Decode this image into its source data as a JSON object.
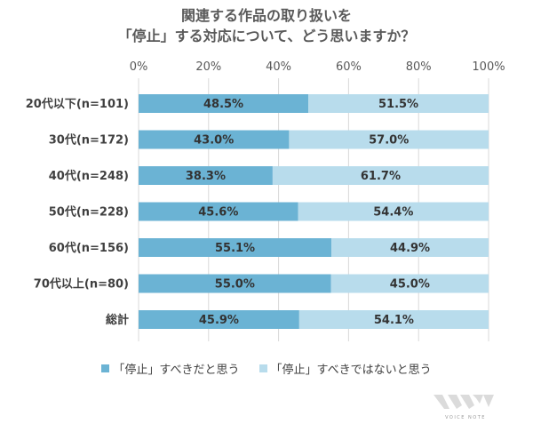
{
  "title_line1": "関連する作品の取り扱いを",
  "title_line2": "「停止」する対応について、どう思いますか？",
  "colors": {
    "series1": "#6bb3d4",
    "series2": "#b8dcec",
    "grid": "#d9d9d9"
  },
  "chart_data": {
    "type": "bar",
    "orientation": "horizontal",
    "stacked": true,
    "title": "関連する作品の取り扱いを「停止」する対応について、どう思いますか？",
    "categories": [
      "20代以下(n=101)",
      "30代(n=172)",
      "40代(n=248)",
      "50代(n=228)",
      "60代(n=156)",
      "70代以上(n=80)",
      "総計"
    ],
    "series": [
      {
        "name": "「停止」すべきだと思う",
        "values": [
          48.5,
          43.0,
          38.3,
          45.6,
          55.1,
          55.0,
          45.9
        ]
      },
      {
        "name": "「停止」すべきではないと思う",
        "values": [
          51.5,
          57.0,
          61.7,
          54.4,
          44.9,
          45.0,
          54.1
        ]
      }
    ],
    "data_labels": [
      [
        "48.5%",
        "43.0%",
        "38.3%",
        "45.6%",
        "55.1%",
        "55.0%",
        "45.9%"
      ],
      [
        "51.5%",
        "57.0%",
        "61.7%",
        "54.4%",
        "44.9%",
        "45.0%",
        "54.1%"
      ]
    ],
    "xlim": [
      0,
      100
    ],
    "xticks": [
      "0%",
      "20%",
      "40%",
      "60%",
      "80%",
      "100%"
    ],
    "grid": true,
    "legend_position": "bottom"
  },
  "logo_text": "VOICE NOTE"
}
